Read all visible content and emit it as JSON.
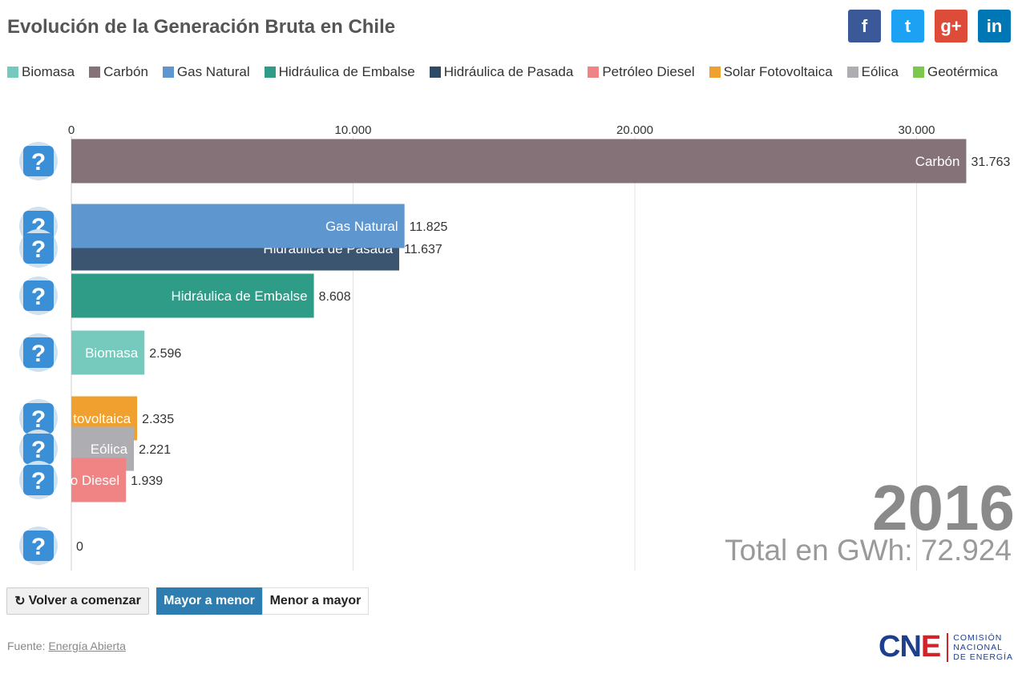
{
  "title": "Evolución de la Generación Bruta en Chile",
  "social": [
    {
      "name": "facebook-icon",
      "glyph": "f",
      "color": "#3b5998"
    },
    {
      "name": "twitter-icon",
      "glyph": "t",
      "color": "#1da1f2"
    },
    {
      "name": "googleplus-icon",
      "glyph": "g+",
      "color": "#dd4b39"
    },
    {
      "name": "linkedin-icon",
      "glyph": "in",
      "color": "#0077b5"
    }
  ],
  "legend": [
    {
      "label": "Biomasa",
      "color": "#76cabd"
    },
    {
      "label": "Carbón",
      "color": "#857279"
    },
    {
      "label": "Gas Natural",
      "color": "#5e96d0"
    },
    {
      "label": "Hidráulica de Embalse",
      "color": "#2f9c88"
    },
    {
      "label": "Hidráulica de Pasada",
      "color": "#2d4a67"
    },
    {
      "label": "Petróleo Diesel",
      "color": "#f08484"
    },
    {
      "label": "Solar Fotovoltaica",
      "color": "#f0a02f"
    },
    {
      "label": "Eólica",
      "color": "#aeaeb2"
    },
    {
      "label": "Geotérmica",
      "color": "#7cc84a"
    }
  ],
  "chart_data": {
    "type": "bar",
    "orientation": "horizontal",
    "xlim": [
      0,
      32000
    ],
    "ticks": [
      0,
      10000,
      20000,
      30000
    ],
    "tick_labels": [
      "0",
      "10.000",
      "20.000",
      "30.000"
    ],
    "grid": true,
    "bars": [
      {
        "category": "Carbón",
        "bar_label": "Carbón",
        "value": 31763,
        "value_label": "31.763",
        "color": "#857279"
      },
      {
        "category": "Gas Natural",
        "bar_label": "Gas Natural",
        "value": 11825,
        "value_label": "11.825",
        "color": "#5e96d0"
      },
      {
        "category": "Hidráulica de Pasada",
        "bar_label": "Hidráulica de Pasada",
        "value": 11637,
        "value_label": "11.637",
        "color": "#3b5470"
      },
      {
        "category": "Hidráulica de Embalse",
        "bar_label": "Hidráulica de Embalse",
        "value": 8608,
        "value_label": "8.608",
        "color": "#2f9c88"
      },
      {
        "category": "Biomasa",
        "bar_label": "Biomasa",
        "value": 2596,
        "value_label": "2.596",
        "color": "#76cabd"
      },
      {
        "category": "Solar Fotovoltaica",
        "bar_label": "tovoltaica",
        "value": 2335,
        "value_label": "2.335",
        "color": "#f0a02f"
      },
      {
        "category": "Eólica",
        "bar_label": "Eólica",
        "value": 2221,
        "value_label": "2.221",
        "color": "#aeaeb2"
      },
      {
        "category": "Petróleo Diesel",
        "bar_label": "o Diesel",
        "value": 1939,
        "value_label": "1.939",
        "color": "#f08484"
      },
      {
        "category": "Geotérmica",
        "bar_label": "",
        "value": 0,
        "value_label": "0",
        "color": "#7cc84a"
      }
    ]
  },
  "year": "2016",
  "total": "Total en GWh: 72.924",
  "buttons": {
    "restart": "Volver a comenzar",
    "restart_icon": "↻",
    "desc": "Mayor a menor",
    "asc": "Menor a mayor"
  },
  "source": {
    "prefix": "Fuente:",
    "link": "Energía Abierta"
  },
  "logo": {
    "mark_a": "CN",
    "mark_b": "E",
    "line1": "COMISIÓN",
    "line2": "NACIONAL",
    "line3": "DE ENERGÍA"
  }
}
